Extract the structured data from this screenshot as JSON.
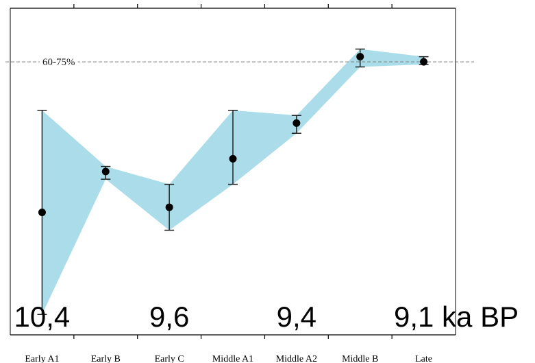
{
  "chart_data": {
    "type": "line",
    "title": "",
    "xlabel": "",
    "ylabel": "",
    "categories": [
      "Early A1",
      "Early B",
      "Early C",
      "Middle A1",
      "Middle A2",
      "Middle B",
      "Late"
    ],
    "series": [
      {
        "values": [
          0.18,
          0.34,
          0.2,
          0.39,
          0.53,
          0.79,
          0.77
        ],
        "error_low": [
          -0.22,
          0.31,
          0.11,
          0.29,
          0.49,
          0.75,
          0.76
        ],
        "error_high": [
          0.58,
          0.36,
          0.29,
          0.58,
          0.56,
          0.82,
          0.79
        ],
        "color": "#000000"
      }
    ],
    "band": {
      "lower": [
        -0.22,
        0.31,
        0.11,
        0.29,
        0.49,
        0.75,
        0.76
      ],
      "upper": [
        0.58,
        0.36,
        0.29,
        0.58,
        0.56,
        0.82,
        0.79
      ],
      "color": "#aadde9"
    },
    "reference_line": {
      "value": 0.77,
      "label": "60-75%",
      "style": "dashed",
      "color": "#777777"
    },
    "ylim": [
      -0.3,
      0.98
    ],
    "grid": false,
    "period_labels": [
      "10,4",
      "9,6",
      "9,4",
      "9,1 ka BP"
    ]
  }
}
